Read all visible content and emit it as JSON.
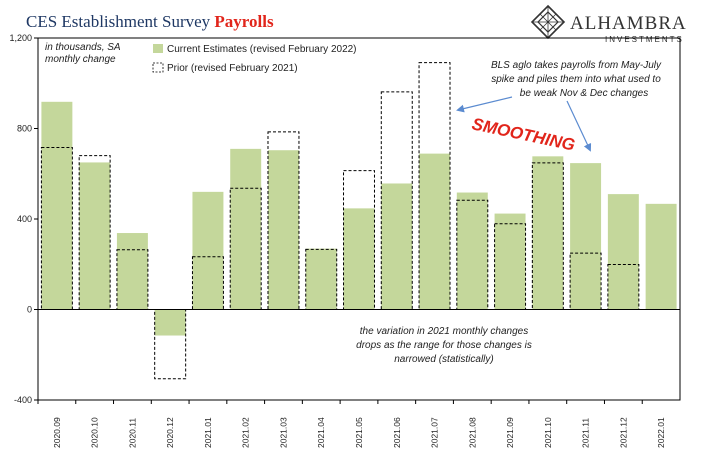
{
  "header": {
    "title_part1": "CES Establishment Survey ",
    "title_part2": "Payrolls"
  },
  "brand": {
    "name": "ALHAMBRA",
    "sub": "INVESTMENTS"
  },
  "colors": {
    "current": "#c4d79b",
    "prior_border": "#000000",
    "title": "#1f3864",
    "accent": "#e1251b",
    "arrow": "#5b8bd0"
  },
  "chart_data": {
    "type": "bar",
    "categories": [
      "2020.09",
      "2020.10",
      "2020.11",
      "2020.12",
      "2021.01",
      "2021.02",
      "2021.03",
      "2021.04",
      "2021.05",
      "2021.06",
      "2021.07",
      "2021.08",
      "2021.09",
      "2021.10",
      "2021.11",
      "2021.12",
      "2022.01"
    ],
    "series": [
      {
        "name": "Current Estimates (revised February 2022)",
        "values": [
          918,
          650,
          338,
          -115,
          520,
          710,
          704,
          269,
          447,
          557,
          689,
          517,
          424,
          677,
          647,
          510,
          467
        ]
      },
      {
        "name": "Prior (revised February 2021)",
        "values": [
          716,
          680,
          264,
          -306,
          233,
          536,
          785,
          266,
          614,
          962,
          1091,
          483,
          379,
          648,
          249,
          199,
          null
        ]
      }
    ],
    "ylim": [
      -400,
      1200
    ],
    "yticks": [
      -400,
      0,
      400,
      800,
      1200
    ],
    "ytick_labels": [
      "-400",
      "0",
      "400",
      "800",
      "1,200"
    ],
    "ylabel": "in thousands, SA monthly change",
    "legend_position": "top",
    "grid": false
  },
  "annotations": {
    "unit_line1": "in thousands, SA",
    "unit_line2": "monthly change",
    "bls_line1": "BLS aglo takes payrolls from May-July",
    "bls_line2": "spike and piles them into what used to",
    "bls_line3": "be weak Nov & Dec changes",
    "smoothing": "SMOOTHING",
    "var_line1": "the variation in 2021 monthly changes",
    "var_line2": "drops as the range for those changes is",
    "var_line3": "narrowed (statistically)"
  }
}
